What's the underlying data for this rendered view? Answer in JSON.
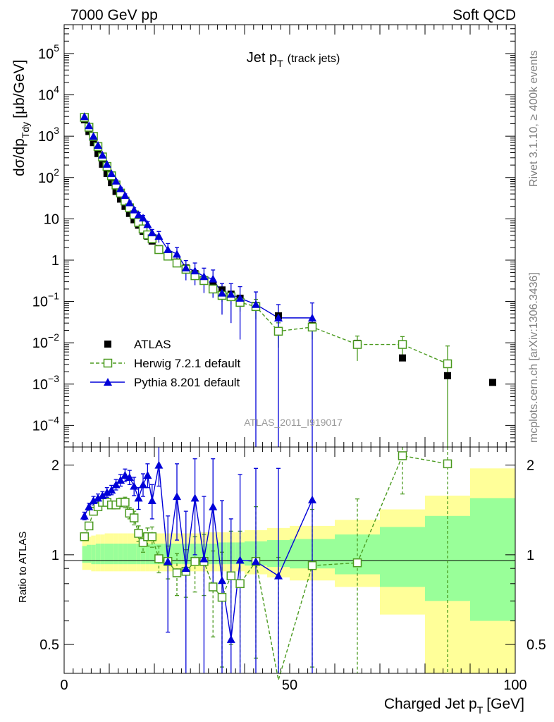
{
  "header": {
    "energy": "7000 GeV pp",
    "category": "Soft QCD"
  },
  "side": {
    "rivet": "Rivet 3.1.10, ≥ 400k events",
    "mcplots": "mcplots.cern.ch [arXiv:1306.3436]"
  },
  "colors": {
    "data": "#000000",
    "herwig": "#4a9a1f",
    "pythia": "#0000d8",
    "band_outer": "#ffff99",
    "band_inner": "#99ff99"
  },
  "chart_data": [
    {
      "type": "scatter",
      "title": "Jet p",
      "title_sub": "T",
      "title_note": "(track jets)",
      "ylabel": "dσ/dp",
      "ylabel_sub": "Tdy",
      "ylabel_unit": "[μb/GeV]",
      "yscale": "log",
      "xlim": [
        0,
        100
      ],
      "ylim": [
        3e-05,
        500000
      ],
      "yticks": [
        {
          "v": 0.0001,
          "b": "10",
          "e": "−4"
        },
        {
          "v": 0.001,
          "b": "10",
          "e": "−3"
        },
        {
          "v": 0.01,
          "b": "10",
          "e": "−2"
        },
        {
          "v": 0.1,
          "b": "10",
          "e": "−1"
        },
        {
          "v": 1,
          "b": "1",
          "e": ""
        },
        {
          "v": 10,
          "b": "10",
          "e": ""
        },
        {
          "v": 100,
          "b": "10",
          "e": "2"
        },
        {
          "v": 1000,
          "b": "10",
          "e": "3"
        },
        {
          "v": 10000,
          "b": "10",
          "e": "4"
        },
        {
          "v": 100000,
          "b": "10",
          "e": "5"
        }
      ],
      "watermark": "ATLAS_2011_I919017",
      "legend_position": "bottom-left",
      "series": [
        {
          "name": "ATLAS",
          "style": "filled-square",
          "x": [
            4.5,
            5.5,
            6.5,
            7.5,
            8.5,
            9.5,
            10.5,
            11.5,
            12.5,
            13.5,
            14.5,
            15.5,
            16.5,
            17.5,
            18.5,
            19.5,
            21,
            23,
            25,
            27,
            29,
            31,
            33,
            35,
            37,
            39,
            42.5,
            47.5,
            55,
            65,
            75,
            85,
            95
          ],
          "y": [
            2500,
            1300,
            700,
            380,
            210,
            125,
            75,
            46,
            30,
            20,
            13.5,
            9.5,
            7,
            5,
            3.8,
            2.9,
            1.9,
            1.3,
            0.9,
            0.65,
            0.47,
            0.34,
            0.25,
            0.19,
            0.15,
            0.12,
            0.08,
            0.045,
            0.026,
            0.0097,
            0.0043,
            0.0016,
            0.0011
          ]
        },
        {
          "name": "Herwig 7.2.1 default",
          "style": "open-square-dashed",
          "x": [
            4.5,
            5.5,
            6.5,
            7.5,
            8.5,
            9.5,
            10.5,
            11.5,
            12.5,
            13.5,
            14.5,
            15.5,
            16.5,
            17.5,
            18.5,
            19.5,
            21,
            23,
            25,
            27,
            29,
            31,
            33,
            35,
            37,
            39,
            42.5,
            47.5,
            55,
            65,
            75,
            85
          ],
          "y": [
            2850,
            1650,
            990,
            560,
            315,
            185,
            110,
            66,
            42,
            27,
            18.5,
            12.5,
            8.2,
            5.7,
            4.1,
            3.3,
            1.8,
            1.25,
            0.85,
            0.6,
            0.42,
            0.32,
            0.2,
            0.14,
            0.13,
            0.095,
            0.075,
            0.019,
            0.024,
            0.0091,
            0.0091,
            0.0031
          ]
        },
        {
          "name": "Pythia 8.201 default",
          "style": "filled-triangle-solid",
          "x": [
            4.5,
            5.5,
            6.5,
            7.5,
            8.5,
            9.5,
            10.5,
            11.5,
            12.5,
            13.5,
            14.5,
            15.5,
            16.5,
            17.5,
            18.5,
            19.5,
            21,
            23,
            25,
            27,
            29,
            31,
            33,
            35,
            37,
            39,
            42.5,
            47.5,
            55
          ],
          "y": [
            3000,
            1800,
            1000,
            600,
            350,
            210,
            125,
            82,
            54,
            37,
            24.5,
            16.5,
            12.6,
            10.5,
            7.3,
            4.6,
            3.8,
            1.8,
            1.4,
            0.65,
            0.55,
            0.4,
            0.35,
            0.16,
            0.15,
            0.12,
            0.085,
            0.04,
            0.04
          ]
        }
      ],
      "legend": [
        {
          "label": "ATLAS",
          "style": "filled-square"
        },
        {
          "label": "Herwig 7.2.1 default",
          "style": "open-square-dashed"
        },
        {
          "label": "Pythia 8.201 default",
          "style": "filled-triangle-solid"
        }
      ]
    },
    {
      "type": "scatter",
      "ylabel": "Ratio to ATLAS",
      "xlabel": "Charged Jet p",
      "xlabel_sub": "T",
      "xlabel_unit": "[GeV]",
      "yscale": "log",
      "xlim": [
        0,
        100
      ],
      "ylim": [
        0.4,
        2.3
      ],
      "xticks": [
        {
          "v": 0,
          "label": "0"
        },
        {
          "v": 50,
          "label": "50"
        },
        {
          "v": 100,
          "label": "100"
        }
      ],
      "yticks": [
        {
          "v": 0.5,
          "label": "0.5"
        },
        {
          "v": 1,
          "label": "1"
        },
        {
          "v": 2,
          "label": "2"
        }
      ],
      "bands": {
        "edges": [
          4,
          5,
          6,
          7,
          8,
          9,
          10,
          11,
          12,
          13,
          14,
          15,
          16,
          17,
          18,
          19,
          20,
          22,
          24,
          26,
          28,
          30,
          32,
          34,
          36,
          38,
          40,
          45,
          50,
          60,
          70,
          80,
          90,
          100
        ],
        "outer_lo": [
          0.89,
          0.89,
          0.88,
          0.88,
          0.88,
          0.88,
          0.88,
          0.88,
          0.88,
          0.88,
          0.88,
          0.88,
          0.88,
          0.88,
          0.88,
          0.88,
          0.88,
          0.88,
          0.88,
          0.88,
          0.88,
          0.88,
          0.88,
          0.88,
          0.88,
          0.88,
          0.86,
          0.84,
          0.82,
          0.78,
          0.63,
          0.4,
          0.4
        ],
        "outer_hi": [
          1.14,
          1.15,
          1.16,
          1.17,
          1.17,
          1.18,
          1.18,
          1.18,
          1.18,
          1.18,
          1.18,
          1.18,
          1.18,
          1.18,
          1.18,
          1.18,
          1.18,
          1.18,
          1.18,
          1.18,
          1.18,
          1.19,
          1.19,
          1.19,
          1.19,
          1.19,
          1.21,
          1.23,
          1.25,
          1.31,
          1.42,
          1.58,
          1.95
        ],
        "inner_lo": [
          0.94,
          0.94,
          0.93,
          0.93,
          0.93,
          0.93,
          0.93,
          0.93,
          0.93,
          0.93,
          0.93,
          0.93,
          0.93,
          0.93,
          0.93,
          0.93,
          0.93,
          0.93,
          0.93,
          0.93,
          0.93,
          0.93,
          0.93,
          0.93,
          0.93,
          0.93,
          0.92,
          0.91,
          0.9,
          0.86,
          0.78,
          0.7,
          0.6
        ],
        "inner_hi": [
          1.07,
          1.08,
          1.08,
          1.09,
          1.09,
          1.09,
          1.09,
          1.09,
          1.09,
          1.09,
          1.09,
          1.09,
          1.09,
          1.09,
          1.09,
          1.09,
          1.09,
          1.09,
          1.09,
          1.09,
          1.09,
          1.09,
          1.09,
          1.1,
          1.1,
          1.1,
          1.11,
          1.12,
          1.13,
          1.17,
          1.24,
          1.35,
          1.55
        ]
      },
      "series": [
        {
          "name": "Herwig 7.2.1 default",
          "x": [
            4.5,
            5.5,
            6.5,
            7.5,
            8.5,
            9.5,
            10.5,
            11.5,
            12.5,
            13.5,
            14.5,
            15.5,
            16.5,
            17.5,
            18.5,
            19.5,
            21,
            23,
            25,
            27,
            29,
            31,
            33,
            35,
            37,
            39,
            42.5,
            47.5,
            55,
            65,
            75,
            85
          ],
          "y": [
            1.15,
            1.25,
            1.4,
            1.45,
            1.5,
            1.5,
            1.47,
            1.47,
            1.5,
            1.5,
            1.38,
            1.33,
            1.18,
            1.1,
            1.15,
            1.15,
            0.97,
            0.95,
            0.87,
            0.88,
            0.95,
            0.95,
            0.78,
            0.72,
            0.85,
            0.8,
            0.95,
            0.38,
            0.92,
            0.94,
            2.15,
            2.02
          ],
          "err": [
            0.03,
            0.03,
            0.03,
            0.03,
            0.04,
            0.04,
            0.04,
            0.04,
            0.05,
            0.06,
            0.06,
            0.07,
            0.07,
            0.08,
            0.08,
            0.09,
            0.1,
            0.12,
            0.14,
            0.16,
            0.2,
            0.22,
            0.25,
            0.3,
            0.35,
            0.4,
            0.5,
            0.6,
            0.5,
            0.6,
            0.55,
            1.7
          ]
        },
        {
          "name": "Pythia 8.201 default",
          "x": [
            4.5,
            5.5,
            6.5,
            7.5,
            8.5,
            9.5,
            10.5,
            11.5,
            12.5,
            13.5,
            14.5,
            15.5,
            16.5,
            17.5,
            18.5,
            19.5,
            21,
            23,
            25,
            27,
            29,
            31,
            33,
            35,
            37,
            39,
            42.5,
            47.5,
            55
          ],
          "y": [
            1.35,
            1.45,
            1.52,
            1.55,
            1.58,
            1.62,
            1.65,
            1.72,
            1.78,
            1.85,
            1.82,
            1.7,
            1.55,
            1.72,
            1.85,
            1.52,
            2.0,
            0.95,
            1.57,
            0.9,
            1.55,
            0.97,
            1.45,
            0.82,
            0.52,
            0.96,
            0.95,
            0.85,
            1.53
          ],
          "err": [
            0.04,
            0.04,
            0.05,
            0.05,
            0.05,
            0.06,
            0.06,
            0.07,
            0.08,
            0.09,
            0.1,
            0.12,
            0.13,
            0.15,
            0.17,
            0.2,
            0.3,
            0.4,
            0.45,
            0.5,
            0.55,
            0.6,
            0.65,
            0.7,
            0.8,
            0.9,
            1.0,
            1.1,
            1.3
          ]
        }
      ]
    }
  ]
}
